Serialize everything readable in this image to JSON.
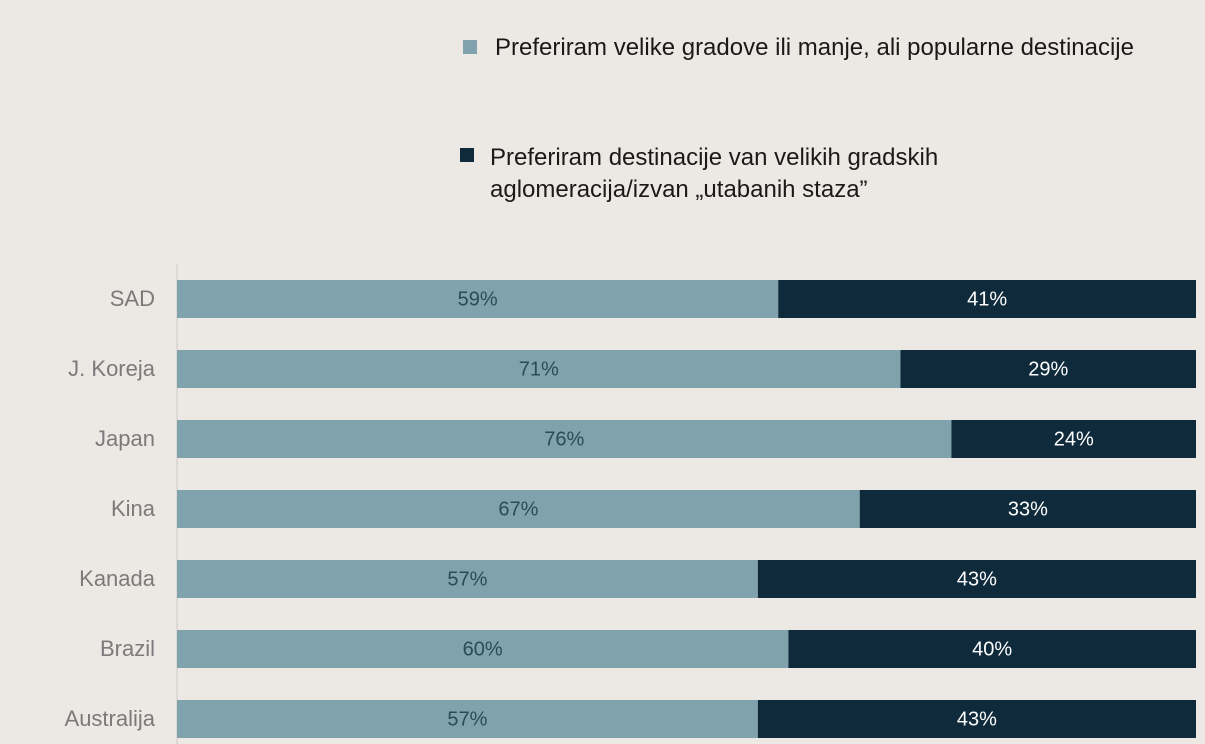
{
  "chart_data": {
    "type": "stacked_bar_horizontal",
    "categories": [
      "SAD",
      "J. Koreja",
      "Japan",
      "Kina",
      "Kanada",
      "Brazil",
      "Australija"
    ],
    "series": [
      {
        "name": "Preferiram velike gradove ili manje, ali popularne destinacije",
        "color": "#7fa2ad",
        "values": [
          59,
          71,
          76,
          67,
          57,
          60,
          57
        ],
        "value_labels": [
          "59%",
          "71%",
          "76%",
          "67%",
          "57%",
          "60%",
          "57%"
        ]
      },
      {
        "name": "Preferiram destinacije van velikih gradskih aglomeracija/izvan „utabanih staza”",
        "color": "#0f2a3b",
        "values": [
          41,
          29,
          24,
          33,
          43,
          40,
          43
        ],
        "value_labels": [
          "41%",
          "29%",
          "24%",
          "33%",
          "43%",
          "40%",
          "43%"
        ]
      }
    ]
  }
}
